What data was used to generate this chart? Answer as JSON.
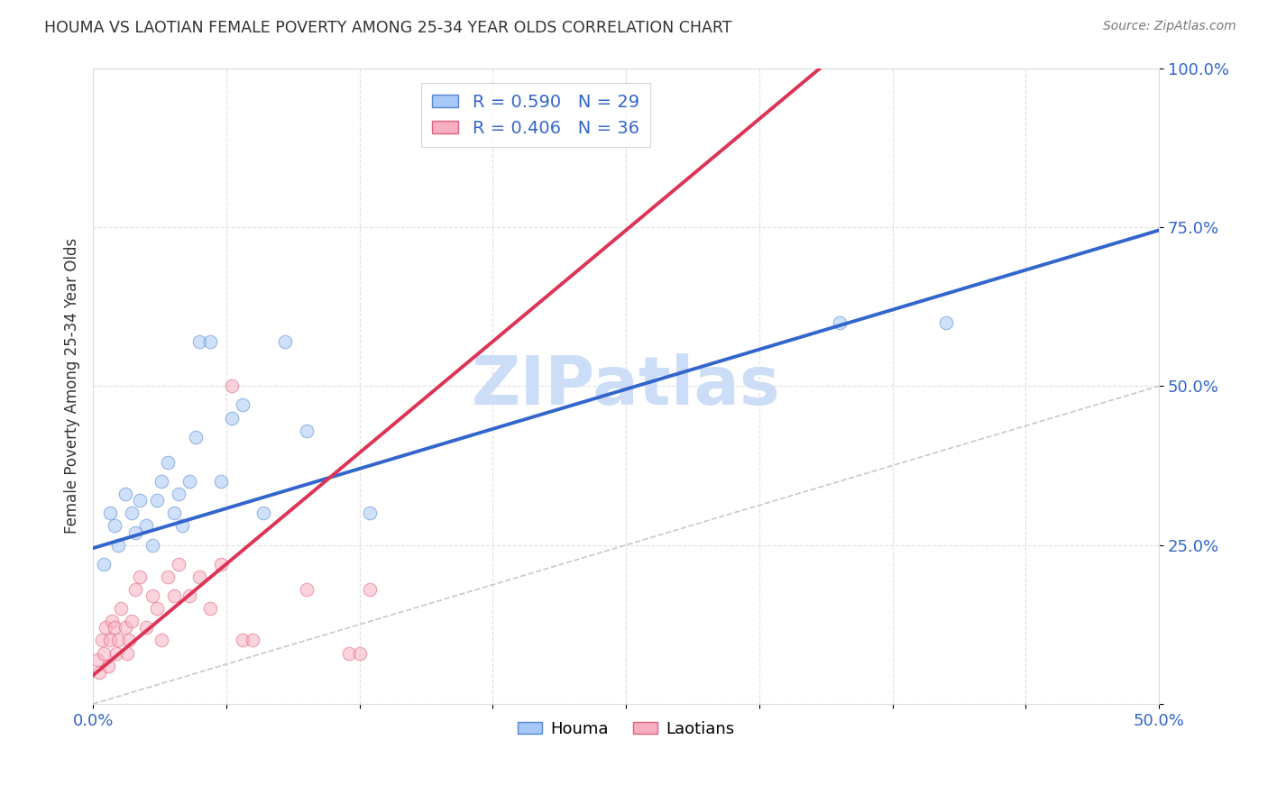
{
  "title": "HOUMA VS LAOTIAN FEMALE POVERTY AMONG 25-34 YEAR OLDS CORRELATION CHART",
  "source": "Source: ZipAtlas.com",
  "ylabel": "Female Poverty Among 25-34 Year Olds",
  "xlim": [
    0.0,
    0.5
  ],
  "ylim": [
    0.0,
    1.0
  ],
  "yticks": [
    0.0,
    0.25,
    0.5,
    0.75,
    1.0
  ],
  "yticklabels_right": [
    "",
    "25.0%",
    "50.0%",
    "75.0%",
    "100.0%"
  ],
  "xtick_left_label": "0.0%",
  "xtick_right_label": "50.0%",
  "houma_color": "#a8c8f8",
  "laotian_color": "#f8b0c0",
  "houma_edge_color": "#5588cc",
  "laotian_edge_color": "#dd6080",
  "houma_line_color": "#3366cc",
  "laotian_line_color": "#dd3355",
  "houma_R": 0.59,
  "houma_N": 29,
  "laotian_R": 0.406,
  "laotian_N": 36,
  "houma_x": [
    0.005,
    0.008,
    0.01,
    0.012,
    0.015,
    0.018,
    0.02,
    0.022,
    0.025,
    0.028,
    0.03,
    0.032,
    0.035,
    0.038,
    0.04,
    0.042,
    0.045,
    0.048,
    0.05,
    0.055,
    0.06,
    0.065,
    0.07,
    0.08,
    0.09,
    0.1,
    0.13,
    0.35,
    0.4
  ],
  "houma_y": [
    0.22,
    0.3,
    0.28,
    0.25,
    0.33,
    0.3,
    0.27,
    0.32,
    0.28,
    0.25,
    0.32,
    0.35,
    0.38,
    0.3,
    0.33,
    0.28,
    0.35,
    0.42,
    0.57,
    0.57,
    0.35,
    0.45,
    0.47,
    0.3,
    0.57,
    0.43,
    0.3,
    0.6,
    0.6
  ],
  "laotian_x": [
    0.002,
    0.003,
    0.004,
    0.005,
    0.006,
    0.007,
    0.008,
    0.009,
    0.01,
    0.011,
    0.012,
    0.013,
    0.015,
    0.016,
    0.017,
    0.018,
    0.02,
    0.022,
    0.025,
    0.028,
    0.03,
    0.032,
    0.035,
    0.038,
    0.04,
    0.045,
    0.05,
    0.055,
    0.06,
    0.065,
    0.07,
    0.075,
    0.1,
    0.12,
    0.125,
    0.13
  ],
  "laotian_y": [
    0.07,
    0.05,
    0.1,
    0.08,
    0.12,
    0.06,
    0.1,
    0.13,
    0.12,
    0.08,
    0.1,
    0.15,
    0.12,
    0.08,
    0.1,
    0.13,
    0.18,
    0.2,
    0.12,
    0.17,
    0.15,
    0.1,
    0.2,
    0.17,
    0.22,
    0.17,
    0.2,
    0.15,
    0.22,
    0.5,
    0.1,
    0.1,
    0.18,
    0.08,
    0.08,
    0.18
  ],
  "watermark": "ZIPatlas",
  "watermark_color": "#ccddf8",
  "background_color": "#ffffff",
  "grid_color": "#cccccc",
  "title_color": "#333333",
  "axis_label_color": "#3366cc",
  "marker_size": 110,
  "marker_alpha": 0.55,
  "houma_intercept": 0.245,
  "houma_slope": 1.0,
  "laotian_intercept": 0.045,
  "laotian_slope": 2.8
}
